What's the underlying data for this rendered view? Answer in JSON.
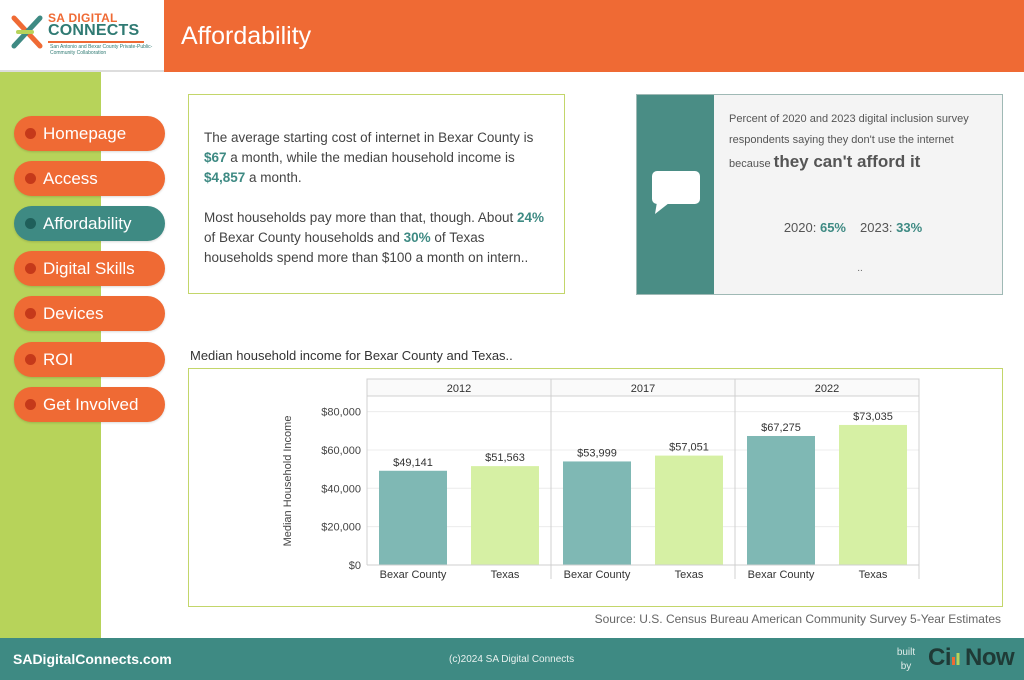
{
  "brand": {
    "logo_top": "SA DIGITAL",
    "logo_main": "CONNECTS",
    "logo_sub": "San Antonio and Bexar County Private-Public-Community Collaboration",
    "accent": "#ef6a34",
    "primary": "#3e8a83",
    "sidebar_color": "#b7d35a"
  },
  "header": {
    "title": "Affordability"
  },
  "nav": {
    "items": [
      {
        "label": "Homepage",
        "active": false
      },
      {
        "label": "Access",
        "active": false
      },
      {
        "label": "Affordability",
        "active": true
      },
      {
        "label": "Digital Skills",
        "active": false
      },
      {
        "label": "Devices",
        "active": false
      },
      {
        "label": "ROI",
        "active": false
      },
      {
        "label": "Get Involved",
        "active": false
      }
    ]
  },
  "summary": {
    "p1_a": "The average starting cost of internet in Bexar County is ",
    "p1_v1": "$67",
    "p1_b": " a month, while the median household income is ",
    "p1_v2": "$4,857",
    "p1_c": " a month.",
    "p2_a": "Most households pay more than that, though. About ",
    "p2_v1": "24%",
    "p2_b": " of Bexar County households and ",
    "p2_v2": "30%",
    "p2_c": " of Texas households  spend more than $100 a month on intern.."
  },
  "survey": {
    "intro": "Percent of 2020 and 2023 digital inclusion survey respondents saying they don't use the internet because ",
    "emphasis": "they can't afford it",
    "stat1_label": "2020: ",
    "stat1_value": "65%",
    "stat2_label": "2023: ",
    "stat2_value": "33%",
    "more": ".."
  },
  "chart_title": "Median household income for Bexar County and Texas..",
  "chart_data": {
    "type": "bar",
    "ylabel": "Median Household Income",
    "ylim": [
      0,
      85000
    ],
    "yticks": [
      0,
      20000,
      40000,
      60000,
      80000
    ],
    "ytick_labels": [
      "$0",
      "$20,000",
      "$40,000",
      "$60,000",
      "$80,000"
    ],
    "grid": true,
    "panels": [
      {
        "year": "2012",
        "categories": [
          "Bexar County",
          "Texas"
        ],
        "values": [
          49141,
          51563
        ],
        "labels": [
          "$49,141",
          "$51,563"
        ]
      },
      {
        "year": "2017",
        "categories": [
          "Bexar County",
          "Texas"
        ],
        "values": [
          53999,
          57051
        ],
        "labels": [
          "$53,999",
          "$57,051"
        ]
      },
      {
        "year": "2022",
        "categories": [
          "Bexar County",
          "Texas"
        ],
        "values": [
          67275,
          73035
        ],
        "labels": [
          "$67,275",
          "$73,035"
        ]
      }
    ],
    "colors": {
      "Bexar County": "#7fb8b4",
      "Texas": "#d6f0a4"
    }
  },
  "source": "Source: U.S. Census Bureau American Community Survey 5-Year Estimates",
  "footer": {
    "site": "SADigitalConnects.com",
    "copyright": "(c)2024 SA Digital Connects",
    "built_by": "built by",
    "builder_a": "Ci",
    "builder_b": "Now"
  }
}
